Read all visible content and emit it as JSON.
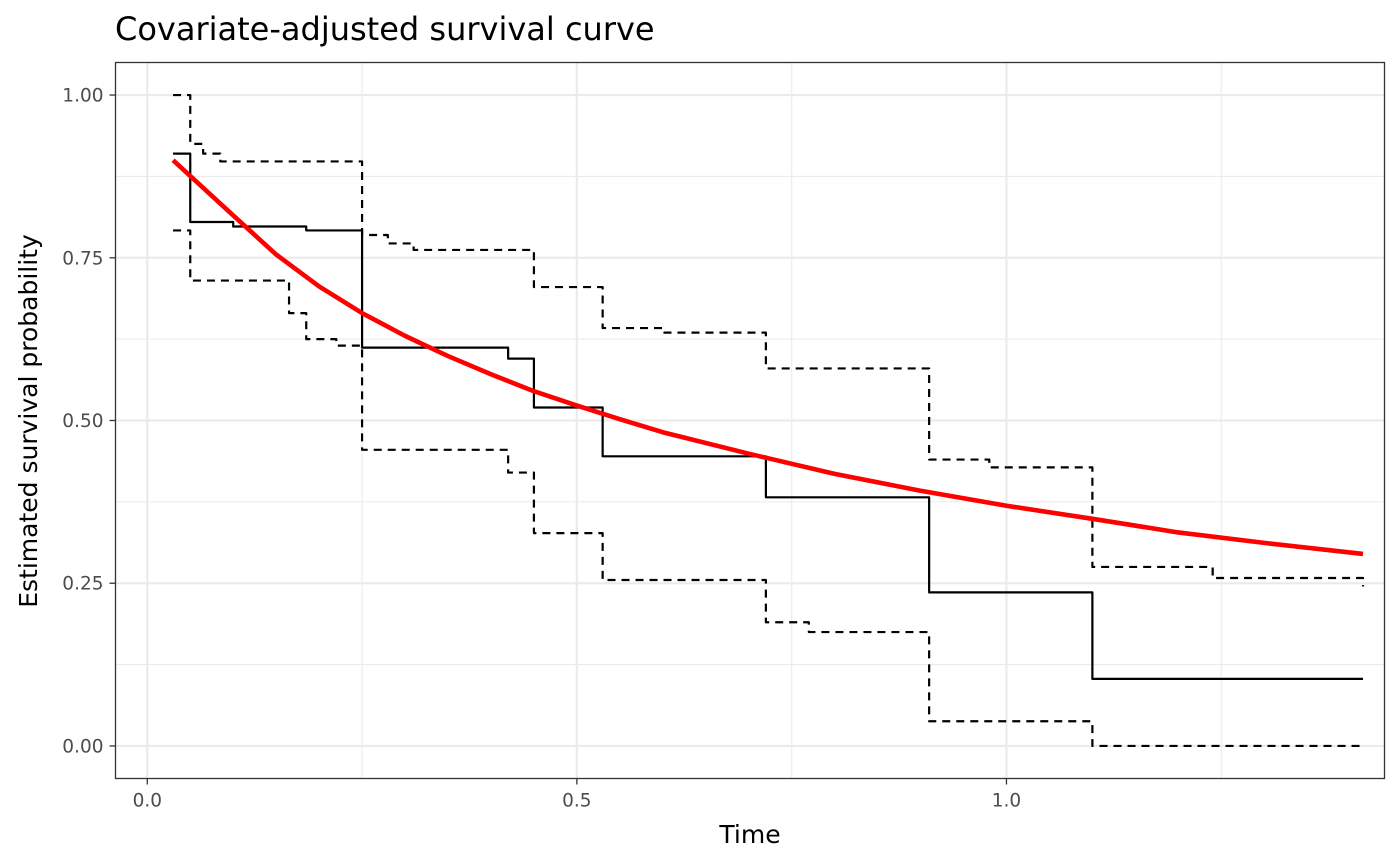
{
  "chart_data": {
    "type": "line",
    "title": "Covariate-adjusted survival curve",
    "xlabel": "Time",
    "ylabel": "Estimated survival probability",
    "xlim": [
      -0.037,
      1.44
    ],
    "ylim": [
      -0.05,
      1.05
    ],
    "x_ticks": [
      0.0,
      0.5,
      1.0
    ],
    "x_tick_labels": [
      "0.0",
      "0.5",
      "1.0"
    ],
    "x_minor_ticks": [
      0.25,
      0.75,
      1.25
    ],
    "y_ticks": [
      0.0,
      0.25,
      0.5,
      0.75,
      1.0
    ],
    "y_tick_labels": [
      "0.00",
      "0.25",
      "0.50",
      "0.75",
      "1.00"
    ],
    "y_minor_ticks": [
      0.125,
      0.375,
      0.625,
      0.875
    ],
    "grid": true,
    "legend": "none",
    "colors": {
      "estimate": "#000000",
      "confidence_band": "#000000",
      "fitted": "#ff0000"
    },
    "series": [
      {
        "kind": "step",
        "line": "solid",
        "color": "#000000",
        "points": [
          [
            0.03,
            0.91
          ],
          [
            0.05,
            0.805
          ],
          [
            0.1,
            0.798
          ],
          [
            0.185,
            0.792
          ],
          [
            0.25,
            0.612
          ],
          [
            0.42,
            0.595
          ],
          [
            0.45,
            0.52
          ],
          [
            0.53,
            0.445
          ],
          [
            0.72,
            0.382
          ],
          [
            0.91,
            0.236
          ],
          [
            1.1,
            0.103
          ],
          [
            1.415,
            0.103
          ]
        ]
      },
      {
        "kind": "step",
        "line": "dashed",
        "color": "#000000",
        "points": [
          [
            0.03,
            1.0
          ],
          [
            0.05,
            0.925
          ],
          [
            0.065,
            0.91
          ],
          [
            0.085,
            0.898
          ],
          [
            0.25,
            0.785
          ],
          [
            0.28,
            0.772
          ],
          [
            0.31,
            0.762
          ],
          [
            0.45,
            0.705
          ],
          [
            0.53,
            0.642
          ],
          [
            0.6,
            0.635
          ],
          [
            0.72,
            0.58
          ],
          [
            0.91,
            0.44
          ],
          [
            0.98,
            0.428
          ],
          [
            1.1,
            0.275
          ],
          [
            1.24,
            0.258
          ],
          [
            1.415,
            0.245
          ]
        ]
      },
      {
        "kind": "step",
        "line": "dashed",
        "color": "#000000",
        "points": [
          [
            0.03,
            0.792
          ],
          [
            0.05,
            0.715
          ],
          [
            0.165,
            0.665
          ],
          [
            0.185,
            0.625
          ],
          [
            0.22,
            0.615
          ],
          [
            0.25,
            0.455
          ],
          [
            0.42,
            0.42
          ],
          [
            0.45,
            0.327
          ],
          [
            0.53,
            0.255
          ],
          [
            0.72,
            0.19
          ],
          [
            0.77,
            0.175
          ],
          [
            0.91,
            0.038
          ],
          [
            1.1,
            0.0
          ],
          [
            1.415,
            0.0
          ]
        ]
      },
      {
        "kind": "curve",
        "line": "solid",
        "color": "#ff0000",
        "points": [
          [
            0.03,
            0.9
          ],
          [
            0.1,
            0.815
          ],
          [
            0.15,
            0.755
          ],
          [
            0.2,
            0.706
          ],
          [
            0.25,
            0.665
          ],
          [
            0.3,
            0.63
          ],
          [
            0.35,
            0.599
          ],
          [
            0.4,
            0.571
          ],
          [
            0.45,
            0.545
          ],
          [
            0.5,
            0.523
          ],
          [
            0.55,
            0.502
          ],
          [
            0.6,
            0.482
          ],
          [
            0.7,
            0.449
          ],
          [
            0.8,
            0.418
          ],
          [
            0.9,
            0.392
          ],
          [
            1.0,
            0.369
          ],
          [
            1.1,
            0.349
          ],
          [
            1.2,
            0.328
          ],
          [
            1.3,
            0.312
          ],
          [
            1.415,
            0.295
          ]
        ]
      }
    ]
  }
}
